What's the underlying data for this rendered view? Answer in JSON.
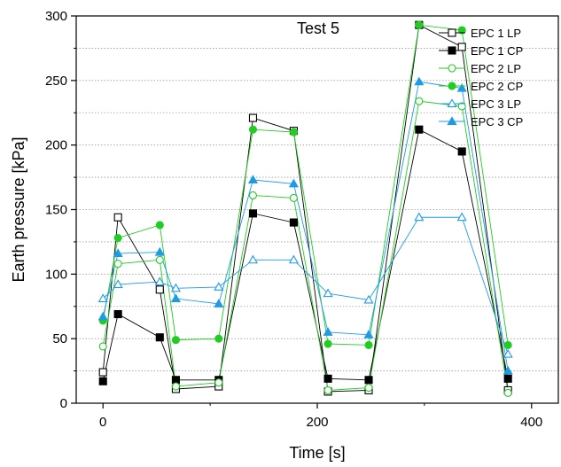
{
  "chart_data": {
    "type": "line",
    "annotation": "Test 5",
    "xlabel": "Time [s]",
    "ylabel": "Earth pressure [kPa]",
    "xlim": [
      -25,
      425
    ],
    "ylim": [
      0,
      300
    ],
    "x_ticks": [
      0,
      200,
      400
    ],
    "y_ticks": [
      0,
      50,
      100,
      150,
      200,
      250,
      300
    ],
    "grid": "horizontal-dotted",
    "legend_position": "top-right",
    "x": [
      0,
      14,
      53,
      68,
      108,
      140,
      178,
      210,
      248,
      295,
      335,
      378
    ],
    "series": [
      {
        "name": "EPC 1 LP",
        "color": "#000000",
        "marker": "square",
        "filled": false,
        "values": [
          24,
          144,
          88,
          11,
          13,
          221,
          211,
          9,
          10,
          293,
          276,
          10
        ]
      },
      {
        "name": "EPC 1 CP",
        "color": "#000000",
        "marker": "square",
        "filled": true,
        "values": [
          17,
          69,
          51,
          18,
          18,
          147,
          140,
          19,
          18,
          212,
          195,
          19
        ]
      },
      {
        "name": "EPC 2 LP",
        "color": "#22cc22",
        "marker": "circle",
        "filled": false,
        "values": [
          44,
          108,
          111,
          13,
          16,
          161,
          159,
          10,
          12,
          234,
          230,
          8
        ]
      },
      {
        "name": "EPC 2 CP",
        "color": "#22cc22",
        "marker": "circle",
        "filled": true,
        "values": [
          64,
          128,
          138,
          49,
          50,
          212,
          210,
          46,
          45,
          293,
          289,
          45
        ]
      },
      {
        "name": "EPC 3 LP",
        "color": "#1e9be6",
        "marker": "triangle",
        "filled": false,
        "values": [
          81,
          92,
          94,
          89,
          90,
          111,
          111,
          85,
          80,
          144,
          144,
          38
        ]
      },
      {
        "name": "EPC 3 CP",
        "color": "#1e9be6",
        "marker": "triangle",
        "filled": true,
        "values": [
          67,
          116,
          117,
          81,
          77,
          173,
          170,
          55,
          53,
          249,
          244,
          25
        ]
      }
    ]
  }
}
